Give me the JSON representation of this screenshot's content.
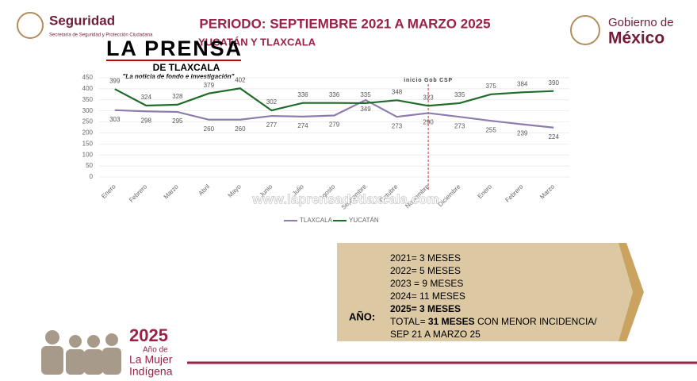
{
  "chart_data": {
    "type": "line",
    "categories": [
      "Enero",
      "Febrero",
      "Marzo",
      "Abril",
      "Mayo",
      "Junio",
      "Julio",
      "Agosto",
      "Septiembre",
      "Octubre",
      "Noviembre",
      "Diciembre",
      "Enero",
      "Febrero",
      "Marzo"
    ],
    "series": [
      {
        "name": "TLAXCALA",
        "color": "#8e7cae",
        "values": [
          303,
          298,
          295,
          260,
          260,
          277,
          274,
          279,
          349,
          273,
          290,
          273,
          255,
          239,
          224
        ]
      },
      {
        "name": "YUCATÁN",
        "color": "#1e6b2a",
        "values": [
          399,
          324,
          328,
          379,
          402,
          302,
          336,
          336,
          335,
          348,
          323,
          335,
          375,
          384,
          390
        ]
      }
    ],
    "ylim": [
      0,
      450
    ],
    "yticks": [
      0,
      50,
      100,
      150,
      200,
      250,
      300,
      350,
      400,
      450
    ],
    "grid": true,
    "legend": "bottom",
    "annotation": {
      "text": "inicio Gob CSP",
      "x": "Noviembre"
    }
  },
  "slide": {
    "title": "PERIODO: SEPTIEMBRE 2021 A MARZO 2025",
    "subtitle": "YUCATÁN Y TLAXCALA",
    "left_logo": {
      "name": "Seguridad",
      "detail": "Secretaría de Seguridad y Protección Ciudadana"
    },
    "right_logo": {
      "line1": "Gobierno de",
      "line2": "México"
    },
    "press": {
      "name": "LA PRENSA",
      "sub": "DE TLAXCALA",
      "motto": "\"La noticia de fondo e investigación\"",
      "url": "www.laprensadetlaxcala.com"
    },
    "box": {
      "label": "AÑO:",
      "lines": [
        "2021= 3 MESES",
        "2022= 5 MESES",
        "2023 = 9 MESES",
        "2024= 11 MESES",
        "2025=  3 MESES"
      ],
      "total": {
        "lead": "TOTAL=",
        "bold": "31 MESES",
        "rest": "CON MENOR INCIDENCIA/",
        "line2": "SEP 21 A MARZO 25"
      }
    },
    "footer": {
      "year": "2025",
      "line1": "Año de",
      "line2": "La Mujer",
      "line3": "Indígena"
    }
  }
}
